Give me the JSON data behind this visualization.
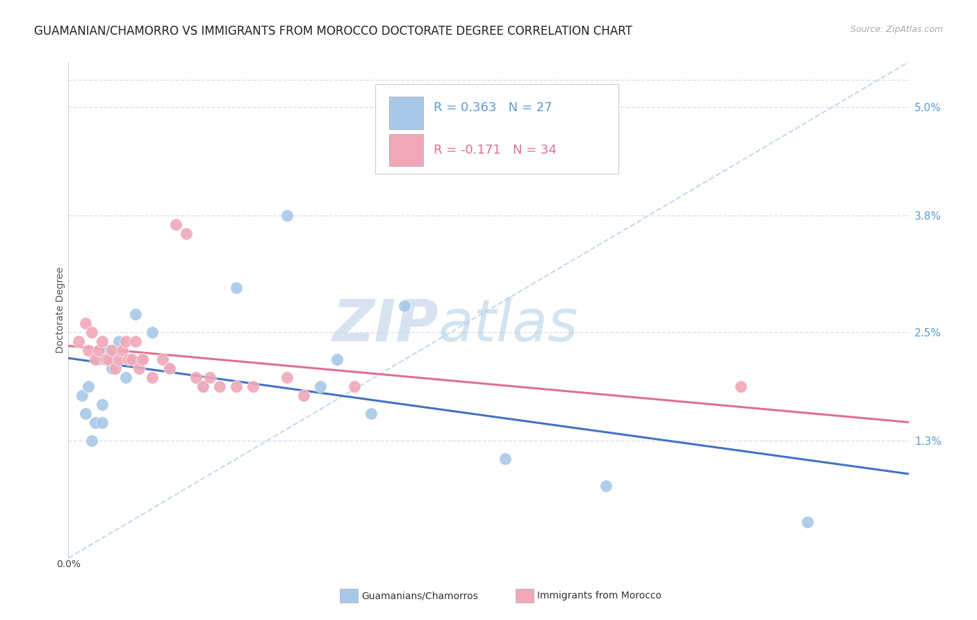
{
  "title": "GUAMANIAN/CHAMORRO VS IMMIGRANTS FROM MOROCCO DOCTORATE DEGREE CORRELATION CHART",
  "source": "Source: ZipAtlas.com",
  "ylabel": "Doctorate Degree",
  "right_yticks": [
    "5.0%",
    "3.8%",
    "2.5%",
    "1.3%"
  ],
  "right_ytick_vals": [
    0.05,
    0.038,
    0.025,
    0.013
  ],
  "xlim": [
    0.0,
    0.25
  ],
  "ylim": [
    0.0,
    0.055
  ],
  "legend_r1": "R = 0.363",
  "legend_n1": "N = 27",
  "legend_r2": "R = -0.171",
  "legend_n2": "N = 34",
  "blue_color": "#A8C8E8",
  "pink_color": "#F0A8B8",
  "line_blue": "#4472C4",
  "line_pink": "#E07090",
  "dashed_line_color": "#C0D4EC",
  "watermark_zip": "ZIP",
  "watermark_atlas": "atlas",
  "guam_x": [
    0.004,
    0.005,
    0.006,
    0.007,
    0.008,
    0.009,
    0.01,
    0.01,
    0.011,
    0.012,
    0.013,
    0.015,
    0.017,
    0.02,
    0.022,
    0.025,
    0.03,
    0.04,
    0.05,
    0.065,
    0.075,
    0.08,
    0.09,
    0.1,
    0.13,
    0.16,
    0.22
  ],
  "guam_y": [
    0.018,
    0.016,
    0.019,
    0.013,
    0.015,
    0.022,
    0.017,
    0.015,
    0.022,
    0.023,
    0.021,
    0.024,
    0.02,
    0.027,
    0.022,
    0.025,
    0.021,
    0.019,
    0.03,
    0.038,
    0.019,
    0.022,
    0.016,
    0.028,
    0.011,
    0.008,
    0.004
  ],
  "morocco_x": [
    0.003,
    0.005,
    0.006,
    0.007,
    0.008,
    0.009,
    0.01,
    0.011,
    0.012,
    0.013,
    0.014,
    0.015,
    0.016,
    0.017,
    0.018,
    0.019,
    0.02,
    0.021,
    0.022,
    0.025,
    0.028,
    0.03,
    0.032,
    0.035,
    0.038,
    0.04,
    0.042,
    0.045,
    0.05,
    0.055,
    0.065,
    0.07,
    0.085,
    0.2
  ],
  "morocco_y": [
    0.024,
    0.026,
    0.023,
    0.025,
    0.022,
    0.023,
    0.024,
    0.022,
    0.022,
    0.023,
    0.021,
    0.022,
    0.023,
    0.024,
    0.022,
    0.022,
    0.024,
    0.021,
    0.022,
    0.02,
    0.022,
    0.021,
    0.037,
    0.036,
    0.02,
    0.019,
    0.02,
    0.019,
    0.019,
    0.019,
    0.02,
    0.018,
    0.019,
    0.019
  ],
  "background_color": "#FFFFFF",
  "grid_color": "#D8DFF0",
  "title_fontsize": 12,
  "source_fontsize": 9,
  "legend_fontsize": 13
}
